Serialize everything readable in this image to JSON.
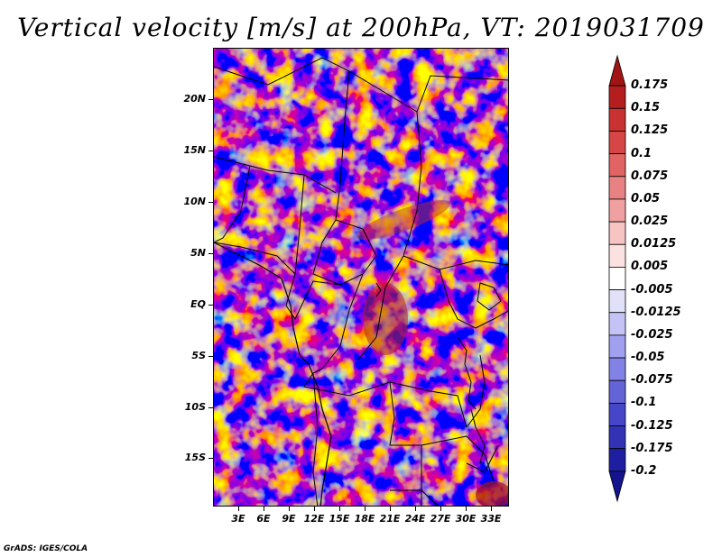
{
  "title": "Vertical velocity [m/s] at 200hPa, VT: 2019031709",
  "credit": "GrADS: IGES/COLA",
  "map": {
    "latitude_labels": [
      "20N",
      "15N",
      "10N",
      "5N",
      "EQ",
      "5S",
      "10S",
      "15S"
    ],
    "longitude_labels": [
      "3E",
      "6E",
      "9E",
      "12E",
      "15E",
      "18E",
      "21E",
      "24E",
      "27E",
      "30E",
      "33E"
    ]
  },
  "colorbar": {
    "labels": [
      "0.175",
      "0.15",
      "0.125",
      "0.1",
      "0.075",
      "0.05",
      "0.025",
      "0.0125",
      "0.005",
      "-0.005",
      "-0.0125",
      "-0.025",
      "-0.05",
      "-0.075",
      "-0.1",
      "-0.125",
      "-0.175",
      "-0.2"
    ],
    "colors": [
      "#a01414",
      "#b41e1e",
      "#c83232",
      "#d74646",
      "#e06464",
      "#e88282",
      "#f0a0a0",
      "#f7c3c3",
      "#fce1e1",
      "#ffffff",
      "#e1e1fa",
      "#c3c3f5",
      "#a0a0f0",
      "#8282e6",
      "#6464d7",
      "#4646c8",
      "#3232b4",
      "#1e1ea0",
      "#14148c"
    ]
  }
}
